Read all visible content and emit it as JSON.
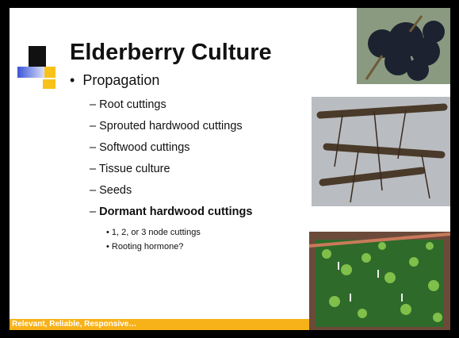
{
  "slide": {
    "title": "Elderberry Culture",
    "bullet": "Propagation",
    "items": [
      "Root cuttings",
      "Sprouted hardwood cuttings",
      "Softwood cuttings",
      "Tissue culture",
      "Seeds",
      "Dormant hardwood cuttings"
    ],
    "subitems": [
      "1, 2, or 3 node cuttings",
      "Rooting hormone?"
    ],
    "footer": "Relevant, Reliable, Responsive…"
  }
}
